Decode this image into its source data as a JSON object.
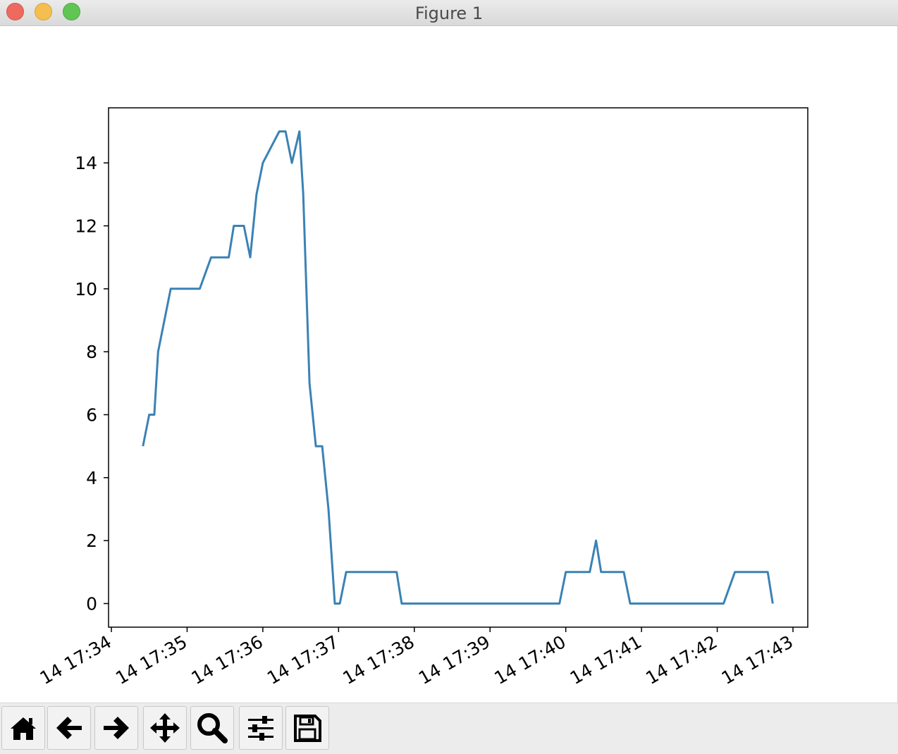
{
  "window": {
    "title": "Figure 1"
  },
  "toolbar": {
    "buttons": [
      {
        "name": "home-icon"
      },
      {
        "name": "back-arrow-icon"
      },
      {
        "name": "forward-arrow-icon"
      },
      {
        "name": "pan-move-icon"
      },
      {
        "name": "zoom-magnifier-icon"
      },
      {
        "name": "configure-subplots-icon"
      },
      {
        "name": "save-floppy-icon"
      }
    ]
  },
  "chart_data": {
    "type": "line",
    "title": "",
    "xlabel": "",
    "ylabel": "",
    "line_color": "#3a82b5",
    "xlim": [
      "14 17:34:00",
      "14 17:43:00"
    ],
    "ylim": [
      -0.75,
      15.75
    ],
    "x_ticks": [
      "14 17:34",
      "14 17:35",
      "14 17:36",
      "14 17:37",
      "14 17:38",
      "14 17:39",
      "14 17:40",
      "14 17:41",
      "14 17:42",
      "14 17:43"
    ],
    "y_ticks": [
      0,
      2,
      4,
      6,
      8,
      10,
      12,
      14
    ],
    "series": [
      {
        "x": [
          "14 17:34:25",
          "14 17:34:30",
          "14 17:34:34",
          "14 17:34:37",
          "14 17:34:47",
          "14 17:35:10",
          "14 17:35:19",
          "14 17:35:33",
          "14 17:35:37",
          "14 17:35:45",
          "14 17:35:50",
          "14 17:35:55",
          "14 17:36:00",
          "14 17:36:13",
          "14 17:36:18",
          "14 17:36:23",
          "14 17:36:29",
          "14 17:36:32",
          "14 17:36:37",
          "14 17:36:42",
          "14 17:36:47",
          "14 17:36:52",
          "14 17:36:57",
          "14 17:37:01",
          "14 17:37:06",
          "14 17:37:15",
          "14 17:37:19",
          "14 17:37:46",
          "14 17:37:50",
          "14 17:39:55",
          "14 17:40:00",
          "14 17:40:19",
          "14 17:40:24",
          "14 17:40:28",
          "14 17:40:46",
          "14 17:40:51",
          "14 17:42:05",
          "14 17:42:14",
          "14 17:42:40",
          "14 17:42:44"
        ],
        "y": [
          5,
          6,
          6,
          8,
          10,
          10,
          11,
          11,
          12,
          12,
          11,
          13,
          14,
          15,
          15,
          14,
          15,
          13,
          7,
          5,
          5,
          3,
          0,
          0,
          1,
          1,
          1,
          1,
          0,
          0,
          1,
          1,
          2,
          1,
          1,
          0,
          0,
          1,
          1,
          0
        ]
      }
    ]
  }
}
